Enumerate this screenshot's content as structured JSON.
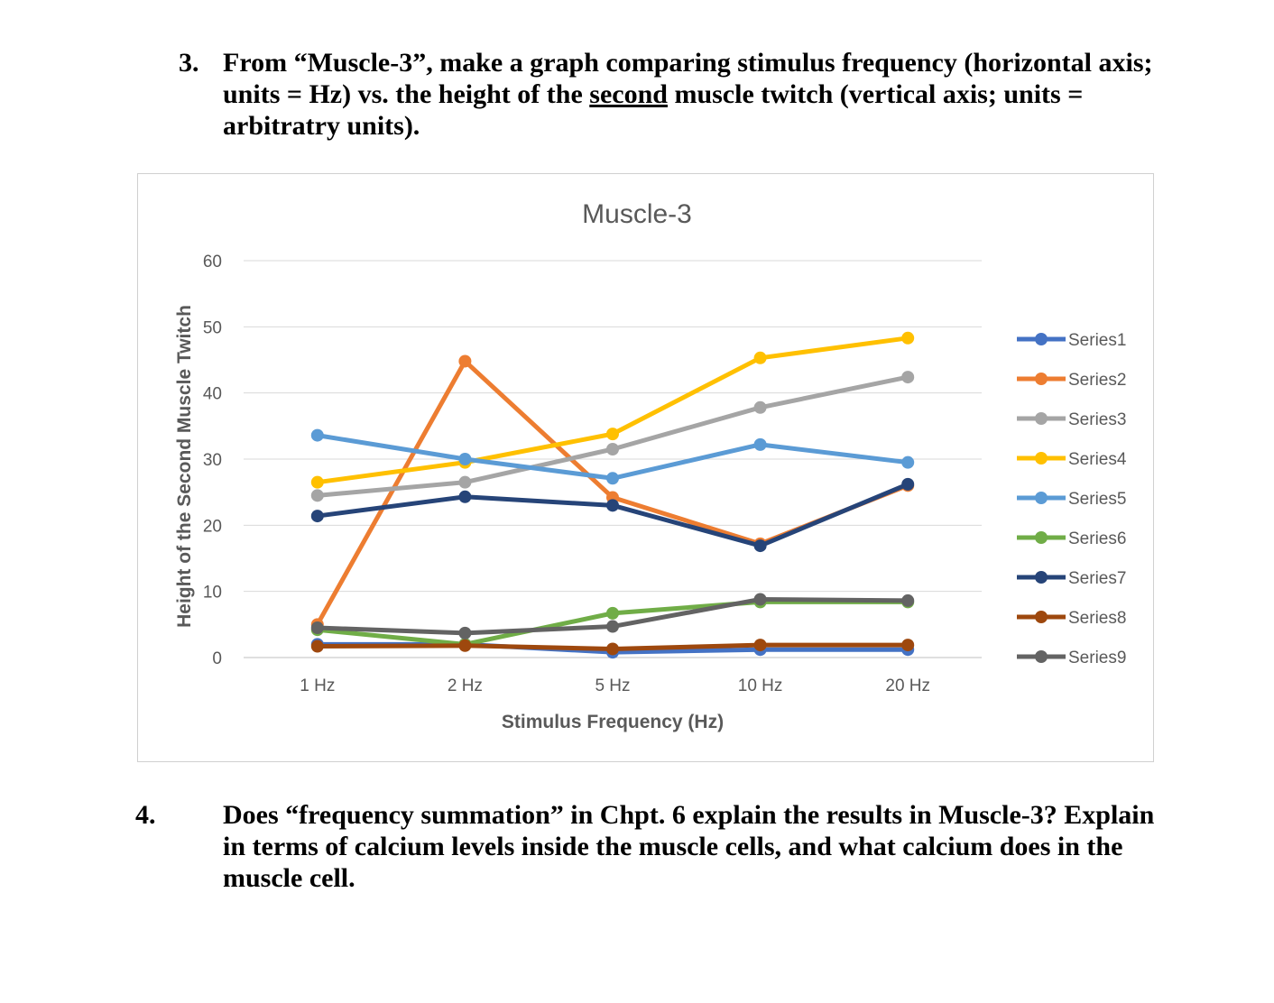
{
  "question3": {
    "number": "3.",
    "text_before": "From “Muscle-3”, make a graph comparing stimulus frequency (horizontal axis; units = Hz) vs. the height of the ",
    "underlined": "second",
    "text_after": " muscle twitch (vertical axis; units = arbitratry units)."
  },
  "question4": {
    "number": "4.",
    "text": "Does “frequency summation” in Chpt. 6 explain the results in Muscle-3? Explain in terms of calcium levels inside the muscle cells, and what calcium does in the muscle cell."
  },
  "chart_data": {
    "type": "line",
    "title": "Muscle-3",
    "xlabel": "Stimulus Frequency  (Hz)",
    "ylabel": "Height of the Second Muscle Twitch",
    "categories": [
      "1 Hz",
      "2 Hz",
      "5 Hz",
      "10 Hz",
      "20 Hz"
    ],
    "ylim": [
      0,
      60
    ],
    "yticks": [
      0,
      10,
      20,
      30,
      40,
      50,
      60
    ],
    "grid": true,
    "legend_position": "right",
    "series": [
      {
        "name": "Series1",
        "color": "#4472C4",
        "values": [
          2.0,
          2.0,
          0.8,
          1.2,
          1.2
        ]
      },
      {
        "name": "Series2",
        "color": "#ED7D31",
        "values": [
          5.0,
          44.8,
          24.2,
          17.2,
          26.0
        ]
      },
      {
        "name": "Series3",
        "color": "#A5A5A5",
        "values": [
          24.5,
          26.5,
          31.5,
          37.8,
          42.4
        ]
      },
      {
        "name": "Series4",
        "color": "#FFC000",
        "values": [
          26.5,
          29.5,
          33.8,
          45.3,
          48.3
        ]
      },
      {
        "name": "Series5",
        "color": "#5B9BD5",
        "values": [
          33.6,
          30.0,
          27.1,
          32.2,
          29.5
        ]
      },
      {
        "name": "Series6",
        "color": "#70AD47",
        "values": [
          4.2,
          2.0,
          6.7,
          8.4,
          8.4
        ]
      },
      {
        "name": "Series7",
        "color": "#264478",
        "values": [
          21.4,
          24.3,
          23.0,
          16.9,
          26.2
        ]
      },
      {
        "name": "Series8",
        "color": "#9E480E",
        "values": [
          1.7,
          1.8,
          1.3,
          1.9,
          1.9
        ]
      },
      {
        "name": "Series9",
        "color": "#636363",
        "values": [
          4.5,
          3.7,
          4.7,
          8.8,
          8.6
        ]
      }
    ]
  }
}
